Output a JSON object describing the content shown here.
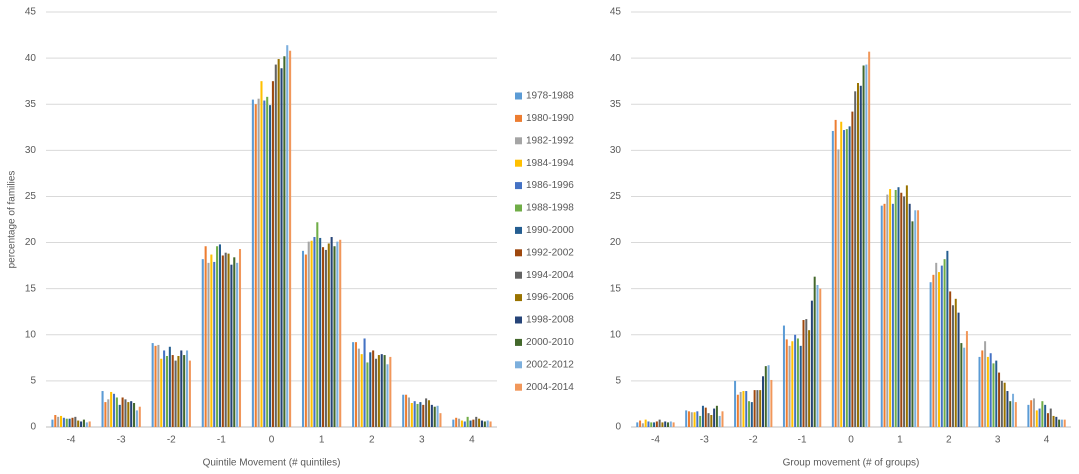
{
  "chart_data": [
    {
      "type": "bar",
      "y_label": "percentage of families",
      "x_label": "Quintile Movement (# quintiles)",
      "categories": [
        "-4",
        "-3",
        "-2",
        "-1",
        "0",
        "1",
        "2",
        "3",
        "4"
      ],
      "ylim": [
        0,
        45
      ],
      "yticks": [
        0,
        5,
        10,
        15,
        20,
        25,
        30,
        35,
        40,
        45
      ],
      "grid": true,
      "legend": "right",
      "series": [
        {
          "name": "1978-1988",
          "color": "#5b9bd5",
          "values": [
            0.8,
            3.9,
            9.1,
            18.2,
            35.5,
            19.1,
            9.2,
            3.5,
            0.8
          ]
        },
        {
          "name": "1980-1990",
          "color": "#ed7d31",
          "values": [
            1.3,
            2.7,
            8.8,
            19.6,
            35.0,
            18.7,
            9.2,
            3.5,
            1.0
          ]
        },
        {
          "name": "1982-1992",
          "color": "#a5a5a5",
          "values": [
            1.1,
            3.0,
            8.9,
            17.8,
            35.6,
            20.1,
            8.5,
            3.2,
            0.9
          ]
        },
        {
          "name": "1984-1994",
          "color": "#ffc000",
          "values": [
            1.2,
            3.8,
            7.4,
            18.7,
            37.5,
            20.2,
            7.9,
            2.6,
            0.7
          ]
        },
        {
          "name": "1986-1996",
          "color": "#4472c4",
          "values": [
            1.0,
            3.6,
            8.3,
            17.9,
            35.4,
            20.6,
            9.6,
            2.8,
            0.6
          ]
        },
        {
          "name": "1988-1998",
          "color": "#70ad47",
          "values": [
            0.9,
            3.2,
            7.7,
            19.6,
            35.8,
            22.2,
            7.0,
            2.5,
            1.1
          ]
        },
        {
          "name": "1990-2000",
          "color": "#255e91",
          "values": [
            0.9,
            2.4,
            8.7,
            19.8,
            34.9,
            20.5,
            8.1,
            2.7,
            0.7
          ]
        },
        {
          "name": "1992-2002",
          "color": "#9e480e",
          "values": [
            1.0,
            3.2,
            7.8,
            18.6,
            37.5,
            19.5,
            8.3,
            2.4,
            0.8
          ]
        },
        {
          "name": "1994-2004",
          "color": "#636363",
          "values": [
            1.1,
            3.0,
            7.2,
            18.9,
            39.3,
            19.2,
            7.4,
            3.1,
            1.1
          ]
        },
        {
          "name": "1996-2006",
          "color": "#997300",
          "values": [
            0.7,
            2.7,
            7.7,
            18.8,
            39.9,
            19.9,
            7.8,
            2.9,
            0.9
          ]
        },
        {
          "name": "1998-2008",
          "color": "#264478",
          "values": [
            0.6,
            2.8,
            8.3,
            17.6,
            38.9,
            20.6,
            7.9,
            2.4,
            0.7
          ]
        },
        {
          "name": "2000-2010",
          "color": "#43682b",
          "values": [
            0.8,
            2.6,
            7.8,
            18.4,
            40.2,
            19.6,
            7.8,
            2.2,
            0.6
          ]
        },
        {
          "name": "2002-2012",
          "color": "#7cafdd",
          "values": [
            0.5,
            1.8,
            8.3,
            17.8,
            41.4,
            20.1,
            6.8,
            2.3,
            0.7
          ]
        },
        {
          "name": "2004-2014",
          "color": "#f1975a",
          "values": [
            0.6,
            2.2,
            7.2,
            19.3,
            40.8,
            20.3,
            7.6,
            1.5,
            0.6
          ]
        }
      ]
    },
    {
      "type": "bar",
      "x_label": "Group movement (# of groups)",
      "categories": [
        "-4",
        "-3",
        "-2",
        "-1",
        "0",
        "1",
        "2",
        "3",
        "4"
      ],
      "ylim": [
        0,
        45
      ],
      "yticks": [
        0,
        5,
        10,
        15,
        20,
        25,
        30,
        35,
        40,
        45
      ],
      "grid": true,
      "series": [
        {
          "values": [
            0.5,
            1.8,
            5.0,
            11.0,
            32.1,
            24.0,
            15.7,
            7.6,
            2.4
          ]
        },
        {
          "values": [
            0.7,
            1.7,
            3.5,
            9.5,
            33.3,
            24.2,
            16.5,
            8.3,
            2.9
          ]
        },
        {
          "values": [
            0.4,
            1.6,
            3.8,
            8.8,
            30.1,
            25.2,
            17.8,
            9.3,
            3.1
          ]
        },
        {
          "values": [
            0.8,
            1.6,
            3.9,
            9.3,
            33.1,
            25.8,
            16.8,
            7.6,
            1.8
          ]
        },
        {
          "values": [
            0.6,
            1.7,
            3.9,
            10.0,
            32.2,
            24.2,
            17.5,
            8.0,
            2.0
          ]
        },
        {
          "values": [
            0.5,
            1.2,
            2.8,
            9.6,
            32.3,
            25.7,
            18.2,
            6.9,
            2.8
          ]
        },
        {
          "values": [
            0.5,
            2.3,
            2.7,
            8.8,
            32.6,
            26.0,
            19.1,
            7.2,
            2.4
          ]
        },
        {
          "values": [
            0.6,
            2.1,
            4.0,
            11.6,
            34.2,
            25.4,
            14.7,
            5.9,
            1.5
          ]
        },
        {
          "values": [
            0.8,
            1.5,
            4.0,
            11.7,
            36.4,
            25.0,
            13.2,
            5.0,
            2.0
          ]
        },
        {
          "values": [
            0.5,
            1.3,
            4.0,
            10.5,
            37.3,
            26.2,
            13.9,
            4.8,
            1.2
          ]
        },
        {
          "values": [
            0.6,
            2.0,
            5.5,
            13.7,
            37.0,
            24.2,
            12.4,
            3.9,
            1.1
          ]
        },
        {
          "values": [
            0.5,
            2.3,
            6.6,
            16.3,
            39.2,
            22.3,
            9.1,
            2.8,
            0.8
          ]
        },
        {
          "values": [
            0.6,
            1.2,
            6.7,
            15.4,
            39.3,
            23.5,
            8.6,
            3.6,
            0.8
          ]
        },
        {
          "values": [
            0.5,
            1.7,
            5.1,
            15.0,
            40.7,
            23.5,
            10.4,
            2.7,
            0.8
          ]
        }
      ]
    }
  ]
}
